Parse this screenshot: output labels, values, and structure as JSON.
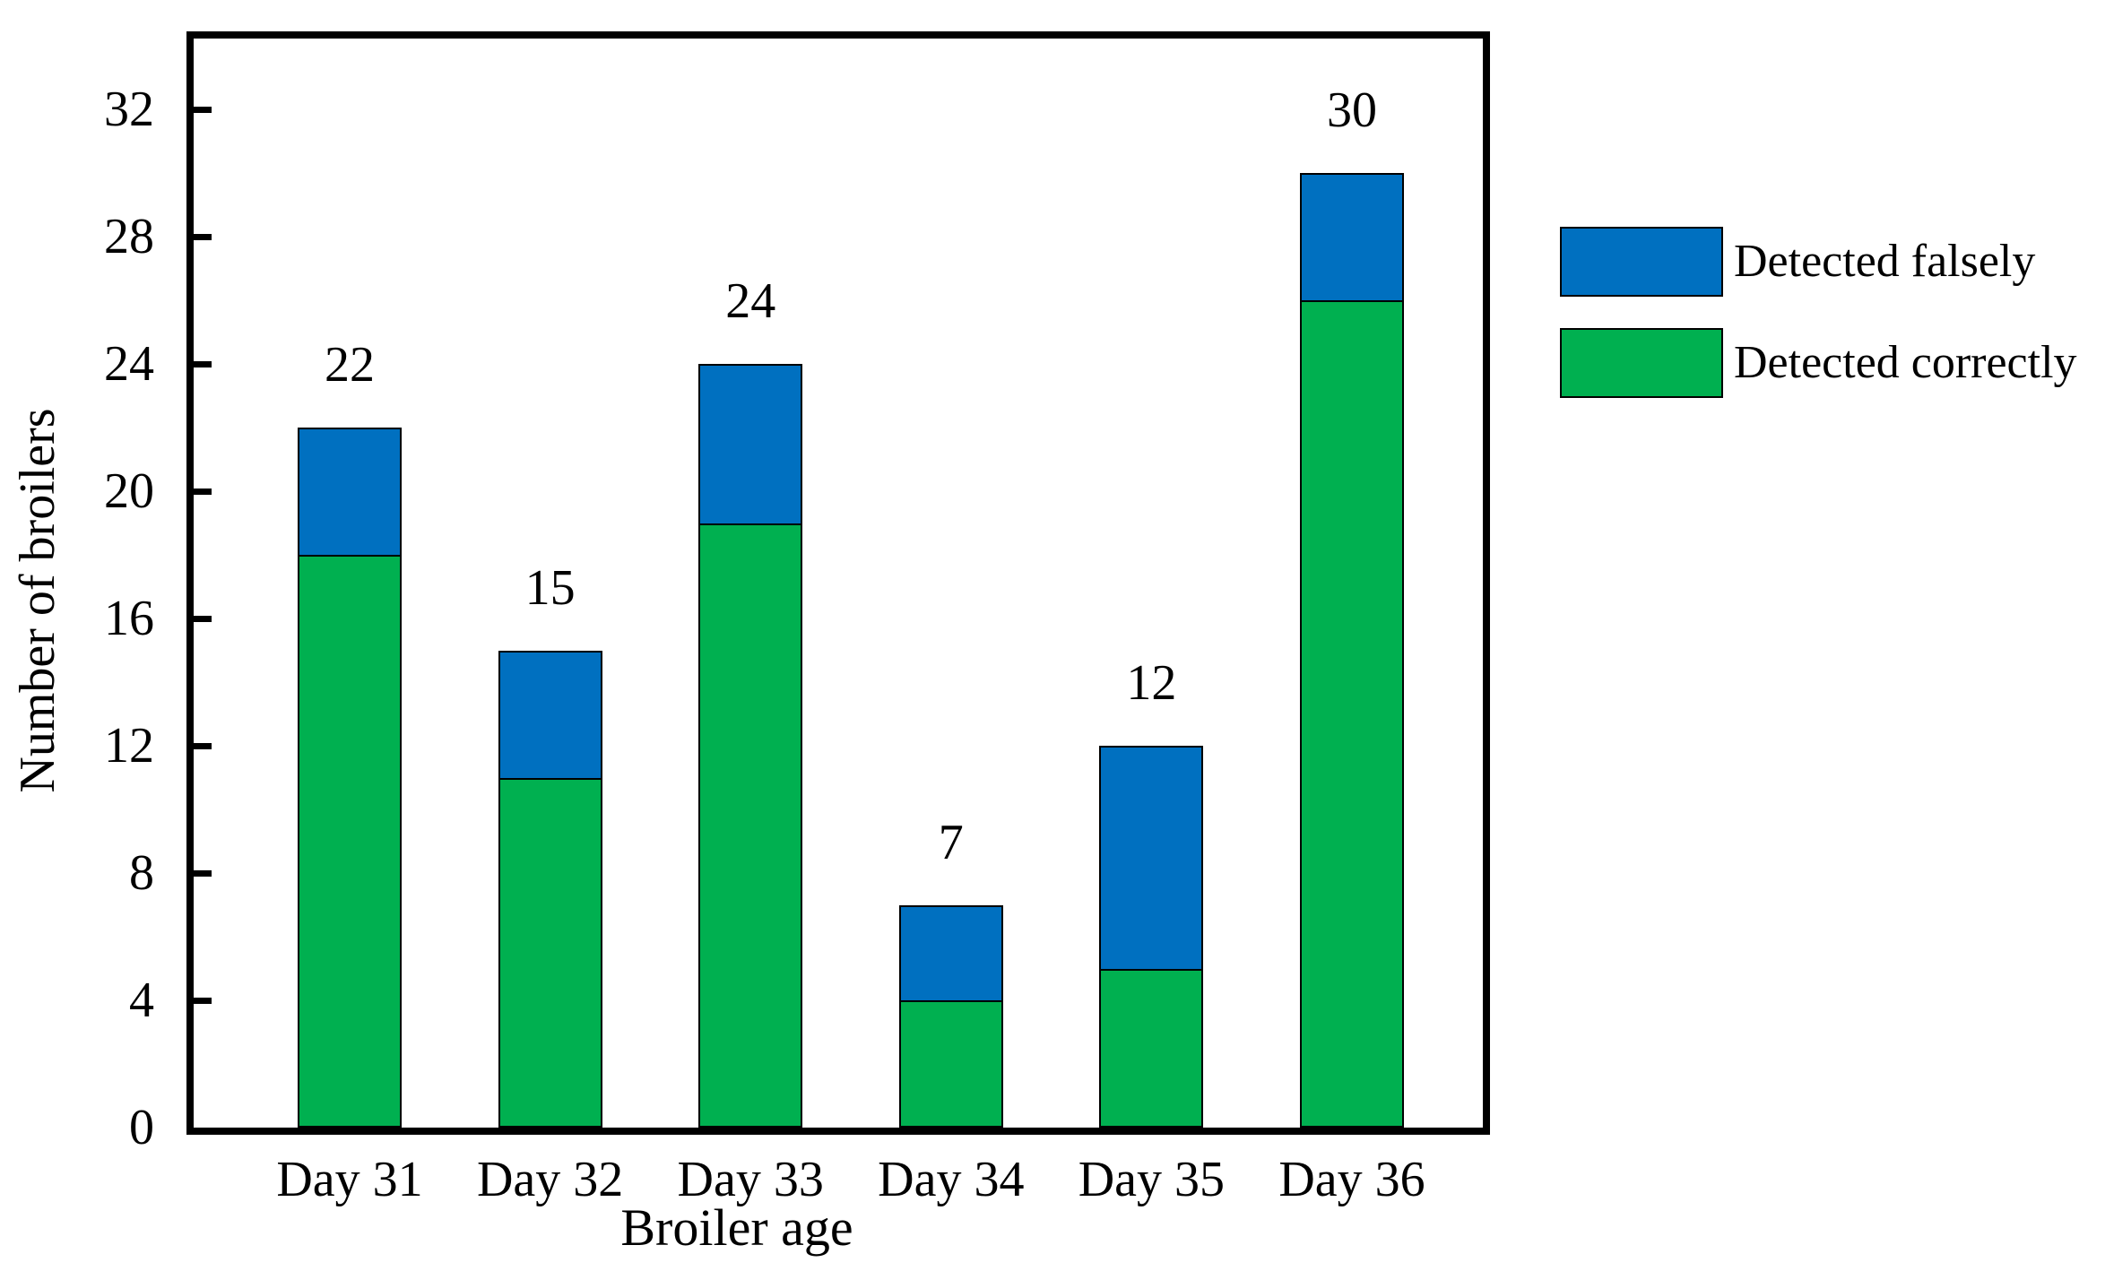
{
  "colors": {
    "falsely": "#0070C0",
    "correctly": "#00B050",
    "axis": "#000000",
    "background": "#ffffff"
  },
  "chart_data": {
    "type": "bar",
    "stacked": true,
    "title": "",
    "xlabel": "Broiler age",
    "ylabel": "Number of broilers",
    "categories": [
      "Day 31",
      "Day 32",
      "Day 33",
      "Day 34",
      "Day 35",
      "Day 36"
    ],
    "series": [
      {
        "name": "Detected correctly",
        "color": "#00B050",
        "values": [
          18,
          11,
          19,
          4,
          5,
          26
        ]
      },
      {
        "name": "Detected falsely",
        "color": "#0070C0",
        "values": [
          4,
          4,
          5,
          3,
          7,
          4
        ]
      }
    ],
    "totals": [
      22,
      15,
      24,
      7,
      12,
      30
    ],
    "total_labels": [
      "22",
      "15",
      "24",
      "7",
      "12",
      "30"
    ],
    "y_ticks": [
      0,
      4,
      8,
      12,
      16,
      20,
      24,
      28,
      32
    ],
    "ylim": [
      0,
      34.2
    ],
    "grid": false,
    "legend_position": "right-outside",
    "legend": [
      {
        "label": "Detected falsely",
        "color": "#0070C0"
      },
      {
        "label": "Detected correctly",
        "color": "#00B050"
      }
    ]
  }
}
